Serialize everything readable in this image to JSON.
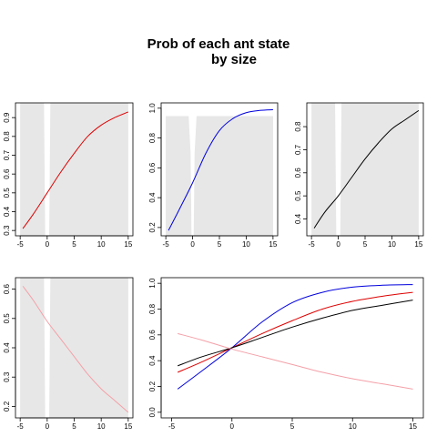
{
  "title_line1": "Prob of each ant state",
  "title_line2": "by size",
  "chart_data": [
    {
      "id": "panel-1",
      "type": "line",
      "xlim": [
        -5,
        15
      ],
      "ylim": [
        0.3,
        0.95
      ],
      "xticks": [
        -5,
        0,
        5,
        10,
        15
      ],
      "yticks": [
        0.3,
        0.4,
        0.5,
        0.6,
        0.7,
        0.8,
        0.9
      ],
      "xtick_labels": [
        "-5",
        "0",
        "5",
        "10",
        "15"
      ],
      "ytick_labels": [
        "0.3",
        "0.4",
        "0.5",
        "0.6",
        "0.7",
        "0.8",
        "0.9"
      ],
      "shaded_band": true,
      "gap_center": 0,
      "gap_shape": "narrow",
      "series": [
        {
          "color": "#dd0000",
          "x": [
            -4.5,
            -2.5,
            0,
            2.5,
            5,
            7.5,
            10,
            12.5,
            15
          ],
          "y": [
            0.31,
            0.39,
            0.5,
            0.61,
            0.71,
            0.8,
            0.86,
            0.9,
            0.93
          ]
        }
      ]
    },
    {
      "id": "panel-2",
      "type": "line",
      "xlim": [
        -5,
        15
      ],
      "ylim": [
        0.18,
        1.0
      ],
      "xticks": [
        -5,
        0,
        5,
        10,
        15
      ],
      "yticks": [
        0.2,
        0.4,
        0.6,
        0.8,
        1.0
      ],
      "xtick_labels": [
        "-5",
        "0",
        "5",
        "10",
        "15"
      ],
      "ytick_labels": [
        "0.2",
        "0.4",
        "0.6",
        "0.8",
        "1.0"
      ],
      "shaded_band": true,
      "gap_center": 0,
      "gap_shape": "funnel",
      "series": [
        {
          "color": "#0000dd",
          "x": [
            -4.5,
            -2.5,
            0,
            2.5,
            5,
            7.5,
            10,
            12.5,
            15
          ],
          "y": [
            0.18,
            0.32,
            0.5,
            0.7,
            0.85,
            0.93,
            0.97,
            0.985,
            0.99
          ]
        }
      ]
    },
    {
      "id": "panel-3",
      "type": "line",
      "xlim": [
        -5,
        15
      ],
      "ylim": [
        0.35,
        0.88
      ],
      "xticks": [
        -5,
        0,
        5,
        10,
        15
      ],
      "yticks": [
        0.4,
        0.5,
        0.6,
        0.7,
        0.8
      ],
      "xtick_labels": [
        "-5",
        "0",
        "5",
        "10",
        "15"
      ],
      "ytick_labels": [
        "0.4",
        "0.5",
        "0.6",
        "0.7",
        "0.8"
      ],
      "shaded_band": true,
      "gap_center": 0,
      "gap_shape": "narrow",
      "series": [
        {
          "color": "#000000",
          "x": [
            -4.5,
            -2.5,
            0,
            2.5,
            5,
            7.5,
            10,
            12.5,
            15
          ],
          "y": [
            0.36,
            0.43,
            0.5,
            0.58,
            0.66,
            0.73,
            0.79,
            0.83,
            0.87
          ]
        }
      ]
    },
    {
      "id": "panel-4",
      "type": "line",
      "xlim": [
        -5,
        15
      ],
      "ylim": [
        0.18,
        0.62
      ],
      "xticks": [
        -5,
        0,
        5,
        10,
        15
      ],
      "yticks": [
        0.2,
        0.3,
        0.4,
        0.5,
        0.6
      ],
      "xtick_labels": [
        "-5",
        "0",
        "5",
        "10",
        "15"
      ],
      "ytick_labels": [
        "0.2",
        "0.3",
        "0.4",
        "0.5",
        "0.6"
      ],
      "shaded_band": true,
      "gap_center": 0,
      "gap_shape": "narrow",
      "series": [
        {
          "color": "#f4a0a8",
          "x": [
            -4.5,
            -2.5,
            0,
            2.5,
            5,
            7.5,
            10,
            12.5,
            15
          ],
          "y": [
            0.61,
            0.56,
            0.49,
            0.43,
            0.37,
            0.31,
            0.26,
            0.22,
            0.18
          ]
        }
      ]
    },
    {
      "id": "panel-5",
      "type": "line",
      "xlim": [
        -5,
        15
      ],
      "ylim": [
        0.0,
        1.0
      ],
      "xticks": [
        -5,
        0,
        5,
        10,
        15
      ],
      "yticks": [
        0.0,
        0.2,
        0.4,
        0.6,
        0.8,
        1.0
      ],
      "xtick_labels": [
        "-5",
        "0",
        "5",
        "10",
        "15"
      ],
      "ytick_labels": [
        "0.0",
        "0.2",
        "0.4",
        "0.6",
        "0.8",
        "1.0"
      ],
      "shaded_band": false,
      "series": [
        {
          "color": "#0000dd",
          "x": [
            -4.5,
            -2.5,
            0,
            2.5,
            5,
            7.5,
            10,
            12.5,
            15
          ],
          "y": [
            0.18,
            0.32,
            0.5,
            0.7,
            0.85,
            0.93,
            0.97,
            0.985,
            0.99
          ]
        },
        {
          "color": "#dd0000",
          "x": [
            -4.5,
            -2.5,
            0,
            2.5,
            5,
            7.5,
            10,
            12.5,
            15
          ],
          "y": [
            0.31,
            0.39,
            0.5,
            0.61,
            0.71,
            0.8,
            0.86,
            0.9,
            0.93
          ]
        },
        {
          "color": "#000000",
          "x": [
            -4.5,
            -2.5,
            0,
            2.5,
            5,
            7.5,
            10,
            12.5,
            15
          ],
          "y": [
            0.36,
            0.43,
            0.5,
            0.58,
            0.66,
            0.73,
            0.79,
            0.83,
            0.87
          ]
        },
        {
          "color": "#f4a0a8",
          "x": [
            -4.5,
            -2.5,
            0,
            2.5,
            5,
            7.5,
            10,
            12.5,
            15
          ],
          "y": [
            0.61,
            0.56,
            0.49,
            0.43,
            0.37,
            0.31,
            0.26,
            0.22,
            0.18
          ]
        }
      ]
    }
  ]
}
